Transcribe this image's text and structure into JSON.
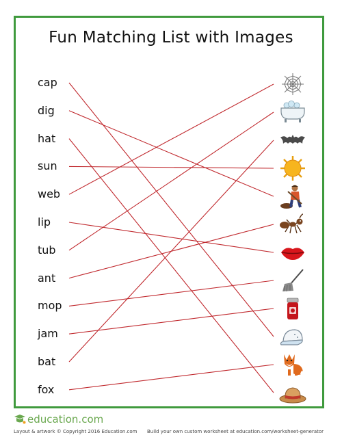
{
  "title": "Fun Matching List with Images",
  "words": [
    "cap",
    "dig",
    "hat",
    "sun",
    "web",
    "lip",
    "tub",
    "ant",
    "mop",
    "jam",
    "bat",
    "fox"
  ],
  "images": [
    {
      "icon": "spider-web-icon"
    },
    {
      "icon": "bathtub-icon"
    },
    {
      "icon": "bat-icon"
    },
    {
      "icon": "sun-icon"
    },
    {
      "icon": "digging-boy-icon"
    },
    {
      "icon": "ant-icon"
    },
    {
      "icon": "lips-icon"
    },
    {
      "icon": "mop-icon"
    },
    {
      "icon": "jam-jar-icon"
    },
    {
      "icon": "cap-icon"
    },
    {
      "icon": "fox-icon"
    },
    {
      "icon": "hat-icon"
    }
  ],
  "matches": [
    9,
    4,
    11,
    3,
    0,
    6,
    1,
    5,
    7,
    8,
    2,
    10
  ],
  "colors": {
    "border": "#3f9a3d",
    "line": "#c0282d",
    "brand": "#6aa84f"
  },
  "footer": {
    "logo": "education.com",
    "copyright": "Layout & artwork © Copyright 2016 Education.com",
    "promo": "Build your own custom worksheet at education.com/worksheet-generator"
  }
}
